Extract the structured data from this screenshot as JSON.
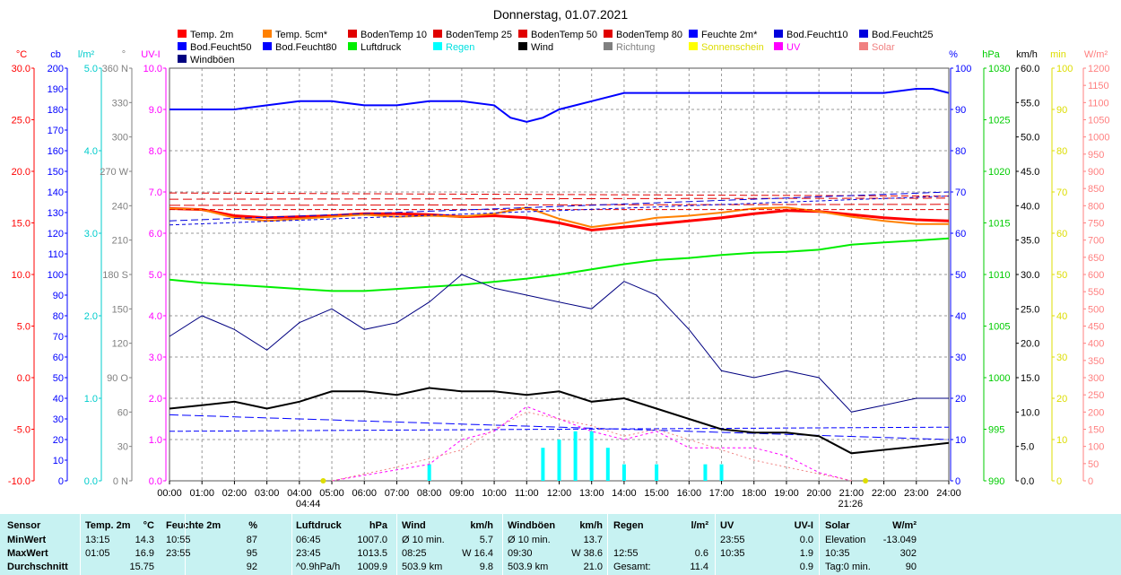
{
  "title": "Donnerstag, 01.07.2021",
  "legend": [
    {
      "label": "Temp. 2m",
      "color": "#ff0000"
    },
    {
      "label": "Temp. 5cm*",
      "color": "#ff8000"
    },
    {
      "label": "BodenTemp 10",
      "color": "#e00000"
    },
    {
      "label": "BodenTemp 25",
      "color": "#e00000"
    },
    {
      "label": "BodenTemp 50",
      "color": "#e00000"
    },
    {
      "label": "BodenTemp 80",
      "color": "#e00000"
    },
    {
      "label": "Feuchte 2m*",
      "color": "#0000ff"
    },
    {
      "label": "Bod.Feucht10",
      "color": "#0000dd"
    },
    {
      "label": "Bod.Feucht25",
      "color": "#0000dd"
    },
    {
      "label": "Bod.Feucht50",
      "color": "#0000ff"
    },
    {
      "label": "Bod.Feucht80",
      "color": "#0000ff"
    },
    {
      "label": "Luftdruck",
      "color": "#00ee00"
    },
    {
      "label": "Regen",
      "color": "#00ffff"
    },
    {
      "label": "Wind",
      "color": "#000000"
    },
    {
      "label": "Richtung",
      "color": "#808080"
    },
    {
      "label": "Sonnenschein",
      "color": "#ffff00"
    },
    {
      "label": "UV",
      "color": "#ff00ff"
    },
    {
      "label": "Solar",
      "color": "#f08080"
    },
    {
      "label": "Windböen",
      "color": "#000080"
    }
  ],
  "axes": {
    "temp": {
      "unit": "°C",
      "color": "#ff0000",
      "ticks": [
        "30.0",
        "25.0",
        "20.0",
        "15.0",
        "10.0",
        "5.0",
        "0.0",
        "-5.0",
        "-10.0"
      ]
    },
    "cb": {
      "unit": "cb",
      "color": "#0000ff",
      "ticks": [
        "200",
        "190",
        "180",
        "170",
        "160",
        "150",
        "140",
        "130",
        "120",
        "110",
        "100",
        "90",
        "80",
        "70",
        "60",
        "50",
        "40",
        "30",
        "20",
        "10",
        "0"
      ]
    },
    "rain": {
      "unit": "l/m²",
      "color": "#00cccc",
      "ticks": [
        "5.0",
        "4.0",
        "3.0",
        "2.0",
        "1.0",
        "0.0"
      ]
    },
    "dir": {
      "unit": "°",
      "color": "#808080",
      "ticks": [
        "360 N",
        "330",
        "300",
        "270 W",
        "240",
        "210",
        "180 S",
        "150",
        "120",
        "90 O",
        "60",
        "30",
        "0 N"
      ]
    },
    "uv": {
      "unit": "UV-I",
      "color": "#ff00ff",
      "ticks": [
        "10.0",
        "9.0",
        "8.0",
        "7.0",
        "6.0",
        "5.0",
        "4.0",
        "3.0",
        "2.0",
        "1.0",
        "0.0"
      ]
    },
    "hum": {
      "unit": "%",
      "color": "#0000ff",
      "ticks": [
        "100",
        "90",
        "80",
        "70",
        "60",
        "50",
        "40",
        "30",
        "20",
        "10",
        "0"
      ]
    },
    "press": {
      "unit": "hPa",
      "color": "#00cc00",
      "ticks": [
        "1030",
        "1025",
        "1020",
        "1015",
        "1010",
        "1005",
        "1000",
        "995",
        "990"
      ]
    },
    "wind": {
      "unit": "km/h",
      "color": "#000000",
      "ticks": [
        "60.0",
        "55.0",
        "50.0",
        "45.0",
        "40.0",
        "35.0",
        "30.0",
        "25.0",
        "20.0",
        "15.0",
        "10.0",
        "5.0",
        "0.0"
      ]
    },
    "sun": {
      "unit": "min",
      "color": "#dddd00",
      "ticks": [
        "100",
        "90",
        "80",
        "70",
        "60",
        "50",
        "40",
        "30",
        "20",
        "10",
        "0"
      ]
    },
    "solar": {
      "unit": "W/m²",
      "color": "#ff8080",
      "ticks": [
        "1200",
        "1150",
        "1100",
        "1050",
        "1000",
        "950",
        "900",
        "850",
        "800",
        "750",
        "700",
        "650",
        "600",
        "550",
        "500",
        "450",
        "400",
        "350",
        "300",
        "250",
        "200",
        "150",
        "100",
        "50",
        "0"
      ]
    }
  },
  "x_ticks": [
    "00:00",
    "01:00",
    "02:00",
    "03:00",
    "04:00",
    "05:00",
    "06:00",
    "07:00",
    "08:00",
    "09:00",
    "10:00",
    "11:00",
    "12:00",
    "13:00",
    "14:00",
    "15:00",
    "16:00",
    "17:00",
    "18:00",
    "19:00",
    "20:00",
    "21:00",
    "22:00",
    "23:00",
    "24:00"
  ],
  "sunrise": "04:44",
  "sunset": "21:26",
  "chart_data": {
    "type": "line",
    "title": "Donnerstag, 01.07.2021",
    "x_range": [
      "00:00",
      "24:00"
    ],
    "series": [
      {
        "name": "Temp. 2m",
        "unit": "°C",
        "color": "#ff0000",
        "x": [
          0,
          1,
          2,
          3,
          4,
          5,
          6,
          7,
          8,
          9,
          10,
          11,
          12,
          13,
          14,
          15,
          16,
          17,
          18,
          19,
          20,
          21,
          22,
          23,
          24
        ],
        "y": [
          16.4,
          16.3,
          15.7,
          15.5,
          15.6,
          15.7,
          15.9,
          15.9,
          15.8,
          15.6,
          15.7,
          15.5,
          15.0,
          14.3,
          14.6,
          14.9,
          15.2,
          15.5,
          15.9,
          16.2,
          16.1,
          15.8,
          15.5,
          15.3,
          15.2
        ]
      },
      {
        "name": "Temp. 5cm*",
        "unit": "°C",
        "color": "#ff8000",
        "x": [
          0,
          1,
          2,
          3,
          4,
          5,
          6,
          7,
          8,
          9,
          10,
          11,
          12,
          13,
          14,
          15,
          16,
          17,
          18,
          19,
          20,
          21,
          22,
          23,
          24
        ],
        "y": [
          16.4,
          16.3,
          15.5,
          15.2,
          15.4,
          15.6,
          15.8,
          15.6,
          15.7,
          15.6,
          15.9,
          16.5,
          15.4,
          14.6,
          15.0,
          15.5,
          15.7,
          16.0,
          16.4,
          16.5,
          16.1,
          15.6,
          15.2,
          14.9,
          14.9
        ]
      },
      {
        "name": "BodenTemp 10",
        "unit": "°C",
        "color": "#e00000",
        "x": [
          0,
          24
        ],
        "y": [
          17.9,
          17.6
        ]
      },
      {
        "name": "BodenTemp 25",
        "unit": "°C",
        "color": "#e00000",
        "x": [
          0,
          24
        ],
        "y": [
          17.3,
          17.4
        ]
      },
      {
        "name": "BodenTemp 50",
        "unit": "°C",
        "color": "#e00000",
        "x": [
          0,
          24
        ],
        "y": [
          16.7,
          16.8
        ]
      },
      {
        "name": "BodenTemp 80",
        "unit": "°C",
        "color": "#e00000",
        "x": [
          0,
          24
        ],
        "y": [
          16.3,
          16.3
        ]
      },
      {
        "name": "Feuchte 2m*",
        "unit": "%",
        "color": "#0000ff",
        "x": [
          0,
          1,
          2,
          3,
          4,
          5,
          6,
          7,
          8,
          9,
          10,
          10.5,
          11,
          11.5,
          12,
          13,
          14,
          15,
          16,
          17,
          18,
          19,
          20,
          21,
          22,
          23,
          23.5,
          24
        ],
        "y": [
          90,
          90,
          90,
          91,
          92,
          92,
          91,
          91,
          92,
          92,
          91,
          88,
          87,
          88,
          90,
          92,
          94,
          94,
          94,
          94,
          94,
          94,
          94,
          94,
          94,
          95,
          95,
          94
        ]
      },
      {
        "name": "Bod.Feucht10",
        "unit": "%",
        "color": "#0000dd",
        "x": [
          0,
          24
        ],
        "y": [
          62,
          69
        ]
      },
      {
        "name": "Bod.Feucht25",
        "unit": "%",
        "color": "#0000dd",
        "x": [
          0,
          24
        ],
        "y": [
          63,
          70
        ]
      },
      {
        "name": "Bod.Feucht50",
        "unit": "%",
        "color": "#0000ff",
        "x": [
          0,
          24
        ],
        "y": [
          16,
          10
        ]
      },
      {
        "name": "Bod.Feucht80",
        "unit": "%",
        "color": "#0000ff",
        "x": [
          0,
          24
        ],
        "y": [
          12,
          13
        ]
      },
      {
        "name": "Luftdruck",
        "unit": "hPa",
        "color": "#00ee00",
        "x": [
          0,
          1,
          2,
          3,
          4,
          5,
          6,
          7,
          8,
          9,
          10,
          11,
          12,
          13,
          14,
          15,
          16,
          17,
          18,
          19,
          20,
          21,
          22,
          23,
          24
        ],
        "y": [
          1009.5,
          1009.2,
          1009.0,
          1008.8,
          1008.6,
          1008.4,
          1008.4,
          1008.6,
          1008.8,
          1009.0,
          1009.3,
          1009.6,
          1010.0,
          1010.5,
          1011.0,
          1011.4,
          1011.6,
          1011.9,
          1012.1,
          1012.2,
          1012.4,
          1012.9,
          1013.1,
          1013.3,
          1013.5
        ]
      },
      {
        "name": "Wind",
        "unit": "km/h",
        "color": "#000000",
        "x": [
          0,
          1,
          2,
          3,
          4,
          5,
          6,
          7,
          8,
          9,
          10,
          11,
          12,
          13,
          14,
          15,
          16,
          17,
          18,
          19,
          20,
          21,
          22,
          23,
          24
        ],
        "y": [
          10.5,
          11,
          11.5,
          10.5,
          11.5,
          13,
          13,
          12.5,
          13.5,
          13,
          13,
          12.5,
          13,
          11.5,
          12,
          10.5,
          9,
          7.5,
          7,
          7,
          6.5,
          4,
          4.5,
          5,
          5.5
        ]
      },
      {
        "name": "Windböen",
        "unit": "km/h",
        "color": "#000080",
        "x": [
          0,
          1,
          2,
          3,
          4,
          5,
          6,
          7,
          8,
          9,
          10,
          11,
          12,
          13,
          14,
          15,
          16,
          17,
          18,
          19,
          20,
          21,
          22,
          23,
          24
        ],
        "y": [
          21,
          24,
          22,
          19,
          23,
          25,
          22,
          23,
          26,
          30,
          28,
          27,
          26,
          25,
          29,
          27,
          22,
          16,
          15,
          16,
          15,
          10,
          11,
          12,
          12
        ]
      },
      {
        "name": "Regen",
        "unit": "l/m²",
        "color": "#00ffff",
        "x": [
          8,
          11.5,
          12,
          12.5,
          13,
          13.5,
          14,
          15,
          16.5,
          17
        ],
        "y": [
          0.2,
          0.4,
          0.5,
          0.6,
          0.6,
          0.4,
          0.2,
          0.2,
          0.2,
          0.2
        ]
      },
      {
        "name": "UV",
        "unit": "UV-I",
        "color": "#ff00ff",
        "x": [
          5,
          8,
          9,
          10,
          11,
          12,
          13,
          14,
          15,
          16,
          17,
          18,
          19,
          20,
          21
        ],
        "y": [
          0,
          0.4,
          1.0,
          1.2,
          1.8,
          1.5,
          1.2,
          1.0,
          1.2,
          0.8,
          0.8,
          0.8,
          0.6,
          0.2,
          0
        ]
      },
      {
        "name": "Solar",
        "unit": "W/m²",
        "color": "#f08080",
        "x": [
          5,
          7,
          9,
          10,
          11,
          12,
          13,
          14,
          15,
          16,
          17,
          18,
          19,
          20,
          21
        ],
        "y": [
          0,
          40,
          90,
          150,
          200,
          180,
          160,
          130,
          150,
          120,
          90,
          60,
          40,
          20,
          0
        ]
      }
    ],
    "summary": {
      "headers": [
        "Sensor",
        "Temp. 2m",
        "°C",
        "Feuchte 2m",
        "%",
        "Luftdruck",
        "hPa",
        "Wind",
        "km/h",
        "Windböen",
        "km/h",
        "Regen",
        "l/m²",
        "UV",
        "UV-I",
        "Solar",
        "W/m²"
      ],
      "rows": [
        {
          "label": "MinWert",
          "cells": [
            "13:15",
            "14.3",
            "10:55",
            "87",
            "06:45",
            "1007.0",
            "Ø 10 min.",
            "5.7",
            "Ø 10 min.",
            "13.7",
            "",
            "",
            "23:55",
            "0.0",
            "Elevation",
            "-13.049"
          ]
        },
        {
          "label": "MaxWert",
          "cells": [
            "01:05",
            "16.9",
            "23:55",
            "95",
            "23:45",
            "1013.5",
            "08:25",
            "W 16.4",
            "09:30",
            "W 38.6",
            "12:55",
            "0.6",
            "10:35",
            "1.9",
            "10:35",
            "302"
          ]
        },
        {
          "label": "Durchschnitt",
          "cells": [
            "",
            "15.75",
            "",
            "92",
            "^0.9hPa/h",
            "1009.9",
            "503.9 km",
            "9.8",
            "503.9 km",
            "21.0",
            "Gesamt:",
            "11.4",
            "",
            "0.9",
            "Tag:0 min.",
            "90"
          ]
        }
      ]
    }
  }
}
